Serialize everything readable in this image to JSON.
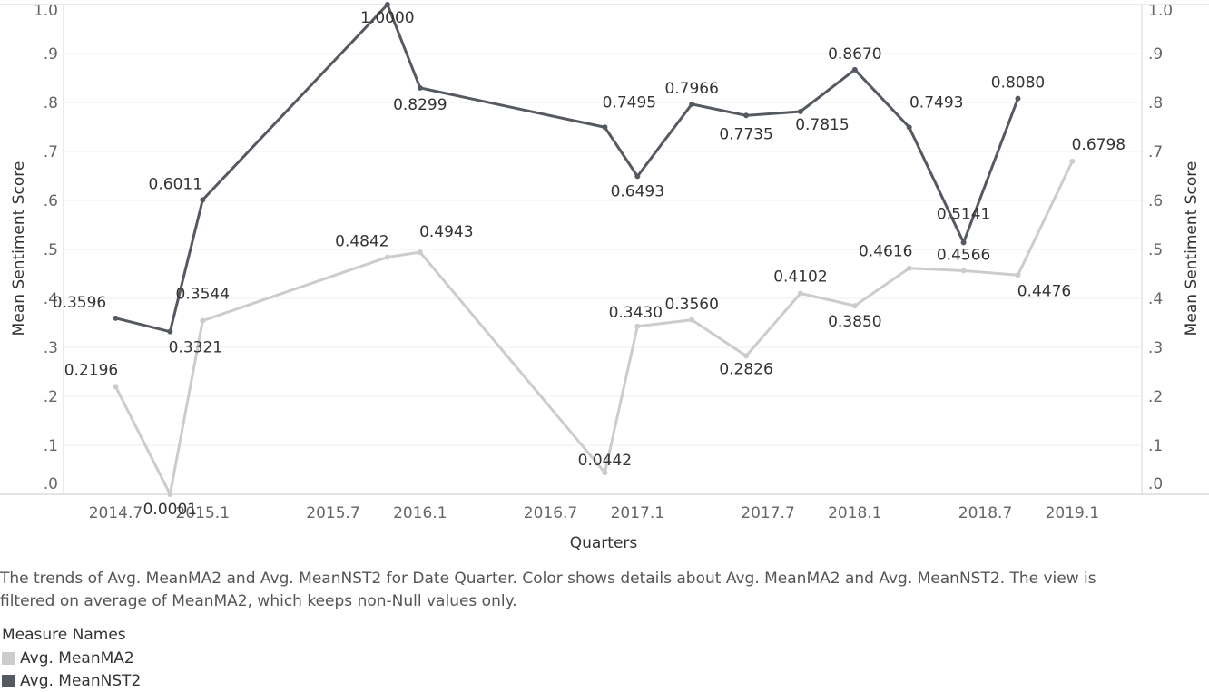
{
  "chart_data": {
    "type": "line",
    "x_title": "Quarters",
    "y_title_left": "Mean Sentiment Score",
    "y_title_right": "Mean Sentiment Score",
    "x_ticks": [
      2014.7,
      2015.1,
      2015.7,
      2016.1,
      2016.7,
      2017.1,
      2017.7,
      2018.1,
      2018.7,
      2019.1
    ],
    "x_tick_labels": [
      "2014.7",
      "2015.1",
      "2015.7",
      "2016.1",
      "2016.7",
      "2017.1",
      "2017.7",
      "2018.1",
      "2018.7",
      "2019.1"
    ],
    "y_ticks": [
      0,
      0.1,
      0.2,
      0.3,
      0.4,
      0.5,
      0.6,
      0.7,
      0.8,
      0.9,
      1.0
    ],
    "y_tick_labels": [
      ".0",
      ".1",
      ".2",
      ".3",
      ".4",
      ".5",
      ".6",
      ".7",
      ".8",
      ".9",
      "1.0"
    ],
    "xlim": [
      2014.46,
      2019.42
    ],
    "ylim": [
      0,
      1.0
    ],
    "grid": true,
    "series": [
      {
        "name": "Avg. MeanMA2",
        "color": "#cccccc",
        "x": [
          2014.7,
          2014.95,
          2015.1,
          2015.95,
          2016.1,
          2016.95,
          2017.1,
          2017.35,
          2017.6,
          2017.85,
          2018.1,
          2018.35,
          2018.6,
          2018.85,
          2019.1
        ],
        "values": [
          0.2196,
          0.0001,
          0.3544,
          0.4842,
          0.4943,
          0.0442,
          0.343,
          0.356,
          0.2826,
          0.4102,
          0.385,
          0.4616,
          0.4566,
          0.4476,
          0.6798
        ],
        "labels": [
          "0.2196",
          "0.0001",
          "0.3544",
          "0.4842",
          "0.4943",
          "0.0442",
          "0.3430",
          "0.3560",
          "0.2826",
          "0.4102",
          "0.3850",
          "0.4616",
          "0.4566",
          "0.4476",
          "0.6798"
        ]
      },
      {
        "name": "Avg. MeanNST2",
        "color": "#555961",
        "x": [
          2014.7,
          2014.95,
          2015.1,
          2015.95,
          2016.1,
          2016.95,
          2017.1,
          2017.35,
          2017.6,
          2017.85,
          2018.1,
          2018.35,
          2018.6,
          2018.85
        ],
        "values": [
          0.3596,
          0.3321,
          0.6011,
          1.0,
          0.8299,
          0.7495,
          0.6493,
          0.7966,
          0.7735,
          0.7815,
          0.867,
          0.7493,
          0.5141,
          0.808
        ],
        "labels": [
          "0.3596",
          "0.3321",
          "0.6011",
          "1.0000",
          "0.8299",
          "0.7495",
          "0.6493",
          "0.7966",
          "0.7735",
          "0.7815",
          "0.8670",
          "0.7493",
          "0.5141",
          "0.8080"
        ]
      }
    ]
  },
  "caption": "The trends of Avg. MeanMA2 and Avg. MeanNST2 for Date Quarter.  Color shows details about Avg. MeanMA2 and Avg. MeanNST2. The view is filtered on average of MeanMA2, which keeps non-Null values only.",
  "legend": {
    "title": "Measure Names",
    "items": [
      {
        "label": "Avg. MeanMA2",
        "color": "#cccccc"
      },
      {
        "label": "Avg. MeanNST2",
        "color": "#555961"
      }
    ]
  }
}
